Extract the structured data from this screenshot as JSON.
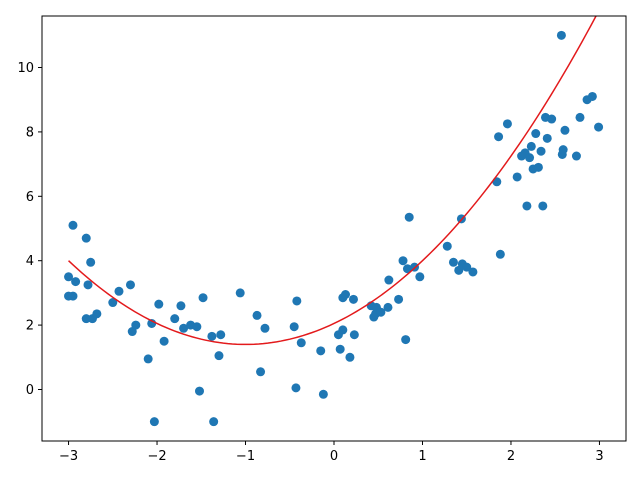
{
  "chart_data": {
    "type": "scatter",
    "title": "",
    "xlabel": "",
    "ylabel": "",
    "xlim": [
      -3.3,
      3.3
    ],
    "ylim": [
      -1.6,
      11.6
    ],
    "x_ticks": [
      -3,
      -2,
      -1,
      0,
      1,
      2,
      3
    ],
    "y_ticks": [
      0,
      2,
      4,
      6,
      8,
      10
    ],
    "x_tick_labels": [
      "−3",
      "−2",
      "−1",
      "0",
      "1",
      "2",
      "3"
    ],
    "y_tick_labels": [
      "0",
      "2",
      "4",
      "6",
      "8",
      "10"
    ],
    "grid": false,
    "legend": "none",
    "series": [
      {
        "type": "scatter",
        "color": "#1f77b4",
        "points": [
          [
            -3.0,
            3.5
          ],
          [
            -3.0,
            2.9
          ],
          [
            -2.95,
            5.1
          ],
          [
            -2.95,
            2.9
          ],
          [
            -2.92,
            3.35
          ],
          [
            -2.8,
            4.7
          ],
          [
            -2.8,
            2.2
          ],
          [
            -2.78,
            3.25
          ],
          [
            -2.75,
            3.95
          ],
          [
            -2.73,
            2.2
          ],
          [
            -2.68,
            2.35
          ],
          [
            -2.5,
            2.7
          ],
          [
            -2.43,
            3.05
          ],
          [
            -2.3,
            3.25
          ],
          [
            -2.28,
            1.8
          ],
          [
            -2.24,
            2.0
          ],
          [
            -2.1,
            0.95
          ],
          [
            -2.06,
            2.05
          ],
          [
            -2.03,
            -1.0
          ],
          [
            -1.98,
            2.65
          ],
          [
            -1.92,
            1.5
          ],
          [
            -1.8,
            2.2
          ],
          [
            -1.73,
            2.6
          ],
          [
            -1.7,
            1.9
          ],
          [
            -1.62,
            2.0
          ],
          [
            -1.55,
            1.95
          ],
          [
            -1.52,
            -0.05
          ],
          [
            -1.48,
            2.85
          ],
          [
            -1.38,
            1.65
          ],
          [
            -1.36,
            -1.0
          ],
          [
            -1.3,
            1.05
          ],
          [
            -1.28,
            1.7
          ],
          [
            -1.06,
            3.0
          ],
          [
            -0.87,
            2.3
          ],
          [
            -0.83,
            0.55
          ],
          [
            -0.78,
            1.9
          ],
          [
            -0.45,
            1.95
          ],
          [
            -0.43,
            0.05
          ],
          [
            -0.42,
            2.75
          ],
          [
            -0.37,
            1.45
          ],
          [
            -0.15,
            1.2
          ],
          [
            -0.12,
            -0.15
          ],
          [
            0.05,
            1.7
          ],
          [
            0.07,
            1.25
          ],
          [
            0.1,
            1.85
          ],
          [
            0.1,
            2.85
          ],
          [
            0.13,
            2.95
          ],
          [
            0.18,
            1.0
          ],
          [
            0.22,
            2.8
          ],
          [
            0.23,
            1.7
          ],
          [
            0.42,
            2.6
          ],
          [
            0.45,
            2.25
          ],
          [
            0.47,
            2.35
          ],
          [
            0.48,
            2.55
          ],
          [
            0.53,
            2.4
          ],
          [
            0.61,
            2.55
          ],
          [
            0.62,
            3.4
          ],
          [
            0.73,
            2.8
          ],
          [
            0.78,
            4.0
          ],
          [
            0.81,
            1.55
          ],
          [
            0.83,
            3.75
          ],
          [
            0.85,
            5.35
          ],
          [
            0.91,
            3.8
          ],
          [
            0.97,
            3.5
          ],
          [
            1.28,
            4.45
          ],
          [
            1.35,
            3.95
          ],
          [
            1.41,
            3.7
          ],
          [
            1.44,
            5.3
          ],
          [
            1.45,
            3.9
          ],
          [
            1.5,
            3.8
          ],
          [
            1.57,
            3.65
          ],
          [
            1.84,
            6.45
          ],
          [
            1.86,
            7.85
          ],
          [
            1.88,
            4.2
          ],
          [
            1.96,
            8.25
          ],
          [
            2.07,
            6.6
          ],
          [
            2.12,
            7.25
          ],
          [
            2.16,
            7.35
          ],
          [
            2.18,
            5.7
          ],
          [
            2.21,
            7.2
          ],
          [
            2.23,
            7.55
          ],
          [
            2.25,
            6.85
          ],
          [
            2.28,
            7.95
          ],
          [
            2.31,
            6.9
          ],
          [
            2.34,
            7.4
          ],
          [
            2.36,
            5.7
          ],
          [
            2.39,
            8.45
          ],
          [
            2.41,
            7.8
          ],
          [
            2.46,
            8.4
          ],
          [
            2.57,
            11.0
          ],
          [
            2.58,
            7.3
          ],
          [
            2.59,
            7.45
          ],
          [
            2.61,
            8.05
          ],
          [
            2.74,
            7.25
          ],
          [
            2.78,
            8.45
          ],
          [
            2.86,
            9.0
          ],
          [
            2.92,
            9.1
          ],
          [
            2.99,
            8.15
          ]
        ]
      },
      {
        "type": "line",
        "color": "#e31a1c",
        "fit": {
          "form": "quadratic",
          "a": 0.65,
          "h": -1.0,
          "k": 1.4
        },
        "x_range": [
          -3.0,
          3.0
        ]
      }
    ]
  }
}
